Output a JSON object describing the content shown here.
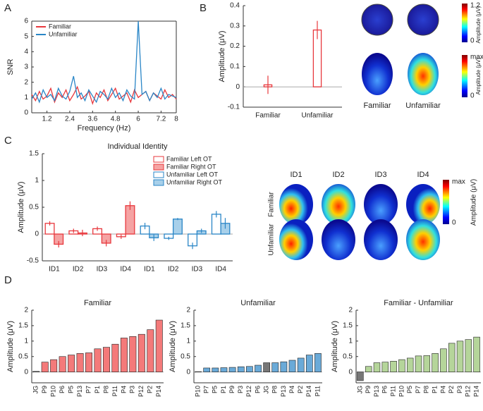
{
  "panel_labels": [
    "A",
    "B",
    "C",
    "D"
  ],
  "chart_data": [
    {
      "type": "line",
      "xlabel": "Frequency (Hz)",
      "ylabel": "SNR",
      "legend": "upper left",
      "box": true,
      "x": [
        0.4,
        0.6,
        0.8,
        1.0,
        1.2,
        1.4,
        1.6,
        1.8,
        2.0,
        2.2,
        2.4,
        2.6,
        2.8,
        3.0,
        3.2,
        3.4,
        3.6,
        3.8,
        4.0,
        4.2,
        4.4,
        4.6,
        4.8,
        5.0,
        5.2,
        5.4,
        5.6,
        5.8,
        6.0,
        6.2,
        6.4,
        6.6,
        6.8,
        7.0,
        7.2,
        7.4,
        7.6,
        7.8,
        8.0
      ],
      "series": [
        {
          "name": "Familiar",
          "color": "#e8383d",
          "values": [
            1.2,
            0.8,
            1.4,
            0.9,
            1.1,
            1.6,
            0.7,
            1.3,
            1.0,
            1.5,
            0.8,
            1.2,
            1.7,
            0.9,
            1.1,
            1.4,
            0.6,
            1.3,
            1.0,
            1.5,
            0.8,
            1.2,
            1.6,
            0.9,
            1.1,
            1.3,
            0.7,
            1.5,
            1.0,
            1.2,
            1.4,
            0.8,
            1.3,
            1.1,
            0.9,
            1.5,
            1.0,
            1.2,
            0.9
          ]
        },
        {
          "name": "Unfamiliar",
          "color": "#2a86c7",
          "values": [
            0.9,
            1.3,
            0.7,
            1.5,
            1.0,
            1.2,
            0.8,
            1.6,
            1.1,
            0.9,
            1.4,
            2.4,
            1.0,
            1.3,
            0.8,
            1.5,
            1.1,
            0.7,
            1.4,
            1.2,
            0.9,
            1.6,
            1.0,
            1.3,
            0.8,
            1.5,
            1.1,
            0.9,
            6,
            1.2,
            1.4,
            0.8,
            1.3,
            1.0,
            1.6,
            0.9,
            1.2,
            1.1,
            1.0
          ]
        }
      ],
      "xlim": [
        0.4,
        8
      ],
      "xticks": [
        1.2,
        2.4,
        3.6,
        4.8,
        6,
        7.2,
        8
      ],
      "ylim": [
        0,
        6
      ],
      "yticks": [
        0,
        1,
        2,
        3,
        4,
        5,
        6
      ]
    },
    {
      "type": "bar",
      "ylabel": "Amplitude (μV)",
      "categories": [
        "Familiar",
        "Unfamiliar"
      ],
      "series": [
        {
          "color": "#e8383d",
          "fill": "none",
          "values": [
            0.01,
            0.28
          ],
          "errors": [
            0.045,
            0.045
          ]
        }
      ],
      "ylim": [
        -0.1,
        0.4
      ],
      "yticks": [
        -0.1,
        0,
        0.1,
        0.2,
        0.3,
        0.4
      ],
      "bar_width": 0.08
    },
    {
      "type": "bar",
      "title": "Individual Identity",
      "ylabel": "Amplitude (μV)",
      "legend": "upper right",
      "categories": [
        "ID1",
        "ID2",
        "ID3",
        "ID4",
        "ID1",
        "ID2",
        "ID3",
        "ID4"
      ],
      "series": [
        {
          "name": "Familiar Left OT",
          "color": "#e8383d",
          "fill": "#ffffff",
          "values": [
            0.2,
            0.06,
            0.1,
            -0.05,
            null,
            null,
            null,
            null
          ],
          "errors": [
            0.04,
            0.04,
            0.04,
            0.04,
            null,
            null,
            null,
            null
          ]
        },
        {
          "name": "Familiar Right OT",
          "color": "#e8383d",
          "fill": "#f5a3a3",
          "values": [
            -0.19,
            0.02,
            -0.17,
            0.53,
            null,
            null,
            null,
            null
          ],
          "errors": [
            0.06,
            0.06,
            0.06,
            0.08,
            null,
            null,
            null,
            null
          ]
        },
        {
          "name": "Unfamiliar Left OT",
          "color": "#2a86c7",
          "fill": "#ffffff",
          "values": [
            null,
            null,
            null,
            null,
            0.15,
            -0.08,
            -0.22,
            0.37
          ],
          "errors": [
            null,
            null,
            null,
            null,
            0.06,
            0.03,
            0.06,
            0.06
          ]
        },
        {
          "name": "Unfamiliar Right OT",
          "color": "#2a86c7",
          "fill": "#a8d0ea",
          "values": [
            null,
            null,
            null,
            null,
            -0.07,
            0.28,
            0.06,
            0.2
          ],
          "errors": [
            null,
            null,
            null,
            null,
            0.06,
            0.02,
            0.04,
            0.1
          ]
        }
      ],
      "ylim": [
        -0.5,
        1.5
      ],
      "yticks": [
        -0.5,
        0,
        0.5,
        1,
        1.5
      ]
    },
    {
      "type": "bar",
      "title": "Familiar",
      "ylabel": "Amplitude (μV)",
      "x_label_rotation": -90,
      "categories": [
        "JG",
        "P9",
        "P10",
        "P6",
        "P5",
        "P13",
        "P7",
        "P1",
        "P8",
        "P11",
        "P4",
        "P3",
        "P12",
        "P2",
        "P14"
      ],
      "series": [
        {
          "colors": [
            "#777777",
            "#f47a7a",
            "#f47a7a",
            "#f47a7a",
            "#f47a7a",
            "#f47a7a",
            "#f47a7a",
            "#f47a7a",
            "#f47a7a",
            "#f47a7a",
            "#f47a7a",
            "#f47a7a",
            "#f47a7a",
            "#f47a7a",
            "#f47a7a"
          ],
          "values": [
            0.02,
            0.32,
            0.4,
            0.5,
            0.55,
            0.6,
            0.62,
            0.75,
            0.8,
            0.9,
            1.1,
            1.15,
            1.22,
            1.37,
            1.68
          ]
        }
      ],
      "ylim": [
        -0.35,
        2
      ],
      "yticks": [
        0,
        0.5,
        1,
        1.5,
        2
      ]
    },
    {
      "type": "bar",
      "title": "Unfamiliar",
      "ylabel": "Amplitude (μV)",
      "x_label_rotation": -90,
      "categories": [
        "P10",
        "P7",
        "P5",
        "P1",
        "P9",
        "P3",
        "P12",
        "P6",
        "JG",
        "P8",
        "P13",
        "P4",
        "P2",
        "P14",
        "P11"
      ],
      "series": [
        {
          "colors": [
            "#6aaad8",
            "#6aaad8",
            "#6aaad8",
            "#6aaad8",
            "#6aaad8",
            "#6aaad8",
            "#6aaad8",
            "#6aaad8",
            "#777777",
            "#6aaad8",
            "#6aaad8",
            "#6aaad8",
            "#6aaad8",
            "#6aaad8",
            "#6aaad8"
          ],
          "values": [
            0.01,
            0.13,
            0.13,
            0.14,
            0.15,
            0.17,
            0.18,
            0.22,
            0.3,
            0.3,
            0.33,
            0.38,
            0.45,
            0.55,
            0.6
          ]
        }
      ],
      "ylim": [
        -0.35,
        2
      ],
      "yticks": [
        0,
        0.5,
        1,
        1.5,
        2
      ]
    },
    {
      "type": "bar",
      "title": "Familiar - Unfamiliar",
      "ylabel": "Amplitude (μV)",
      "x_label_rotation": -90,
      "categories": [
        "JG",
        "P9",
        "P13",
        "P6",
        "P11",
        "P10",
        "P5",
        "P7",
        "P8",
        "P1",
        "P4",
        "P2",
        "P3",
        "P12",
        "P14"
      ],
      "series": [
        {
          "colors": [
            "#777777",
            "#b5d59a",
            "#b5d59a",
            "#b5d59a",
            "#b5d59a",
            "#b5d59a",
            "#b5d59a",
            "#b5d59a",
            "#b5d59a",
            "#b5d59a",
            "#b5d59a",
            "#b5d59a",
            "#b5d59a",
            "#b5d59a",
            "#b5d59a"
          ],
          "values": [
            -0.28,
            0.18,
            0.3,
            0.32,
            0.35,
            0.4,
            0.45,
            0.52,
            0.53,
            0.6,
            0.75,
            0.93,
            1.0,
            1.05,
            1.13
          ]
        }
      ],
      "ylim": [
        -0.35,
        2
      ],
      "yticks": [
        0,
        0.5,
        1,
        1.5,
        2
      ]
    }
  ],
  "topomaps": [
    {
      "labels": [
        "Familiar",
        "Unfamiliar"
      ],
      "colorbars": [
        {
          "top": "1.2",
          "bottom": "0",
          "label": "Amplitude (μV)"
        },
        {
          "top": "max",
          "bottom": "0",
          "label": "Amplitude (μV)"
        }
      ]
    },
    {
      "columns": [
        "ID1",
        "ID2",
        "ID3",
        "ID4"
      ],
      "rows": [
        "Familiar",
        "Unfamiliar"
      ],
      "colorbar": {
        "top": "max",
        "bottom": "0",
        "label": "Amplitude (μV)"
      }
    }
  ]
}
